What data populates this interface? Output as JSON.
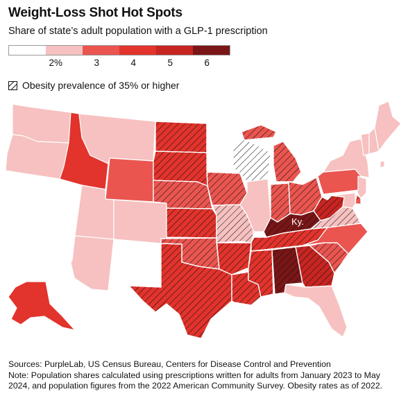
{
  "title": "Weight-Loss Shot Hot Spots",
  "subtitle": "Share of state’s adult population with a GLP-1 prescription",
  "legend": {
    "colors": [
      "#ffffff",
      "#f6c1c0",
      "#ea5550",
      "#e2332c",
      "#c72522",
      "#7a1617"
    ],
    "ticks": [
      "2%",
      "3",
      "4",
      "5",
      "6"
    ]
  },
  "hatch_legend": "Obesity prevalence of 35% or higher",
  "map_label": "Ky.",
  "footer": {
    "sources": "Sources: PurpleLab, US Census Bureau, Centers for Disease Control and Prevention",
    "note": "Note: Population shares calculated using prescriptions written for adults from January 2023 to May 2024, and population figures from the 2022 American Community Survey. Obesity rates as of 2022."
  },
  "states": [
    {
      "id": "WA",
      "bin": 1,
      "obese": false
    },
    {
      "id": "OR",
      "bin": 1,
      "obese": false
    },
    {
      "id": "CA",
      "bin": 0,
      "obese": false
    },
    {
      "id": "NV",
      "bin": 0,
      "obese": false
    },
    {
      "id": "ID",
      "bin": 3,
      "obese": false
    },
    {
      "id": "MT",
      "bin": 1,
      "obese": false
    },
    {
      "id": "WY",
      "bin": 2,
      "obese": false
    },
    {
      "id": "UT",
      "bin": 1,
      "obese": false
    },
    {
      "id": "CO",
      "bin": 1,
      "obese": false
    },
    {
      "id": "AZ",
      "bin": 1,
      "obese": false
    },
    {
      "id": "NM",
      "bin": 0,
      "obese": false
    },
    {
      "id": "ND",
      "bin": 3,
      "obese": true
    },
    {
      "id": "SD",
      "bin": 3,
      "obese": true
    },
    {
      "id": "NE",
      "bin": 2,
      "obese": true
    },
    {
      "id": "KS",
      "bin": 3,
      "obese": true
    },
    {
      "id": "OK",
      "bin": 2,
      "obese": true
    },
    {
      "id": "TX",
      "bin": 3,
      "obese": true
    },
    {
      "id": "MN",
      "bin": 0,
      "obese": false
    },
    {
      "id": "IA",
      "bin": 2,
      "obese": true
    },
    {
      "id": "MO",
      "bin": 1,
      "obese": true
    },
    {
      "id": "AR",
      "bin": 3,
      "obese": true
    },
    {
      "id": "LA",
      "bin": 3,
      "obese": true
    },
    {
      "id": "WI",
      "bin": 0,
      "obese": true
    },
    {
      "id": "IL",
      "bin": 1,
      "obese": false
    },
    {
      "id": "MI",
      "bin": 2,
      "obese": true
    },
    {
      "id": "IN",
      "bin": 2,
      "obese": true
    },
    {
      "id": "OH",
      "bin": 2,
      "obese": true
    },
    {
      "id": "KY",
      "bin": 5,
      "obese": true
    },
    {
      "id": "TN",
      "bin": 3,
      "obese": true
    },
    {
      "id": "MS",
      "bin": 3,
      "obese": true
    },
    {
      "id": "AL",
      "bin": 5,
      "obese": true
    },
    {
      "id": "GA",
      "bin": 4,
      "obese": true
    },
    {
      "id": "FL",
      "bin": 1,
      "obese": false
    },
    {
      "id": "SC",
      "bin": 2,
      "obese": true
    },
    {
      "id": "NC",
      "bin": 2,
      "obese": false
    },
    {
      "id": "VA",
      "bin": 1,
      "obese": true
    },
    {
      "id": "WV",
      "bin": 4,
      "obese": true
    },
    {
      "id": "PA",
      "bin": 2,
      "obese": false
    },
    {
      "id": "NY",
      "bin": 1,
      "obese": false
    },
    {
      "id": "NJ",
      "bin": 1,
      "obese": false
    },
    {
      "id": "DE",
      "bin": 2,
      "obese": true
    },
    {
      "id": "MD",
      "bin": 1,
      "obese": false
    },
    {
      "id": "CT",
      "bin": 0,
      "obese": false
    },
    {
      "id": "RI",
      "bin": 1,
      "obese": false
    },
    {
      "id": "MA",
      "bin": 0,
      "obese": false
    },
    {
      "id": "VT",
      "bin": 1,
      "obese": false
    },
    {
      "id": "NH",
      "bin": 1,
      "obese": false
    },
    {
      "id": "ME",
      "bin": 1,
      "obese": false
    },
    {
      "id": "AK",
      "bin": 3,
      "obese": false
    },
    {
      "id": "HI",
      "bin": 0,
      "obese": false
    }
  ]
}
